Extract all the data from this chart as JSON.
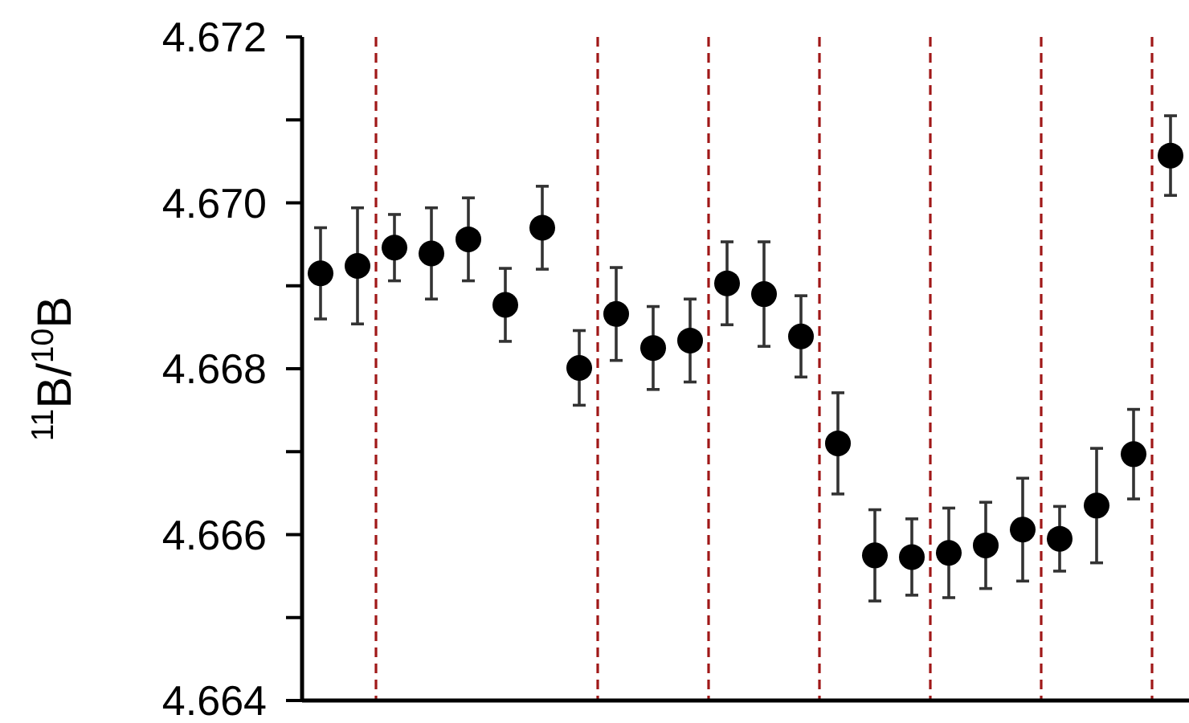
{
  "chart_data": {
    "type": "scatter",
    "ylabel": "$^{11}$B/$^{10}$B",
    "marker": "circle",
    "grid": false,
    "tick_labels": "y",
    "categories": [
      null,
      null,
      null,
      null,
      null,
      null,
      null,
      null,
      null,
      null,
      null,
      null,
      null,
      null,
      null,
      null,
      null,
      null,
      null,
      null,
      null,
      null,
      null,
      null
    ],
    "ylim": [
      4.664,
      4.672
    ],
    "yticks": [
      {
        "value": 4.664,
        "label": "4.664"
      },
      {
        "value": 4.665,
        "label": null
      },
      {
        "value": 4.666,
        "label": "4.666"
      },
      {
        "value": 4.667,
        "label": null
      },
      {
        "value": 4.668,
        "label": "4.668"
      },
      {
        "value": 4.669,
        "label": null
      },
      {
        "value": 4.67,
        "label": "4.670"
      },
      {
        "value": 4.671,
        "label": null
      },
      {
        "value": 4.672,
        "label": "4.672"
      }
    ],
    "series": [
      {
        "color": "#000000",
        "values": [
          4.66915,
          4.66924,
          null,
          null,
          null,
          null,
          null,
          null,
          null,
          null,
          null,
          null,
          null,
          null,
          null,
          null,
          null,
          null,
          null,
          null,
          null,
          null,
          null,
          null
        ],
        "errors": [
          0.00055,
          0.0007,
          null,
          null,
          null,
          null,
          null,
          null,
          null,
          null,
          null,
          null,
          null,
          null,
          null,
          null,
          null,
          null,
          null,
          null,
          null,
          null,
          null,
          null
        ]
      },
      {
        "color": "#000000",
        "values": [
          null,
          null,
          4.66946,
          4.66939,
          4.66956,
          4.66877,
          4.6697,
          4.66801,
          null,
          null,
          null,
          null,
          null,
          null,
          null,
          null,
          null,
          null,
          null,
          null,
          null,
          null,
          null,
          null
        ],
        "errors": [
          null,
          null,
          0.0004,
          0.00055,
          0.0005,
          0.00044,
          0.0005,
          0.00045,
          null,
          null,
          null,
          null,
          null,
          null,
          null,
          null,
          null,
          null,
          null,
          null,
          null,
          null,
          null,
          null
        ]
      },
      {
        "color": "#000000",
        "values": [
          null,
          null,
          null,
          null,
          null,
          null,
          null,
          null,
          4.66866,
          4.66825,
          4.66834,
          null,
          null,
          null,
          null,
          null,
          null,
          null,
          null,
          null,
          null,
          null,
          null,
          null
        ],
        "errors": [
          null,
          null,
          null,
          null,
          null,
          null,
          null,
          null,
          0.00056,
          0.0005,
          0.0005,
          null,
          null,
          null,
          null,
          null,
          null,
          null,
          null,
          null,
          null,
          null,
          null,
          null
        ]
      },
      {
        "color": "#000000",
        "values": [
          null,
          null,
          null,
          null,
          null,
          null,
          null,
          null,
          null,
          null,
          null,
          4.66903,
          4.6689,
          4.66839,
          null,
          null,
          null,
          null,
          null,
          null,
          null,
          null,
          null,
          null
        ],
        "errors": [
          null,
          null,
          null,
          null,
          null,
          null,
          null,
          null,
          null,
          null,
          null,
          0.0005,
          0.00063,
          0.00049,
          null,
          null,
          null,
          null,
          null,
          null,
          null,
          null,
          null,
          null
        ]
      },
      {
        "color": "#000000",
        "values": [
          null,
          null,
          null,
          null,
          null,
          null,
          null,
          null,
          null,
          null,
          null,
          null,
          null,
          null,
          4.6671,
          4.66575,
          4.66573,
          null,
          null,
          null,
          null,
          null,
          null,
          null
        ],
        "errors": [
          null,
          null,
          null,
          null,
          null,
          null,
          null,
          null,
          null,
          null,
          null,
          null,
          null,
          null,
          0.00061,
          0.00055,
          0.00046,
          null,
          null,
          null,
          null,
          null,
          null,
          null
        ]
      },
      {
        "color": "#000000",
        "values": [
          null,
          null,
          null,
          null,
          null,
          null,
          null,
          null,
          null,
          null,
          null,
          null,
          null,
          null,
          null,
          null,
          null,
          4.66578,
          4.66587,
          4.66606,
          null,
          null,
          null,
          null
        ],
        "errors": [
          null,
          null,
          null,
          null,
          null,
          null,
          null,
          null,
          null,
          null,
          null,
          null,
          null,
          null,
          null,
          null,
          null,
          0.00054,
          0.00052,
          0.00062,
          null,
          null,
          null,
          null
        ]
      },
      {
        "color": "#000000",
        "values": [
          null,
          null,
          null,
          null,
          null,
          null,
          null,
          null,
          null,
          null,
          null,
          null,
          null,
          null,
          null,
          null,
          null,
          null,
          null,
          null,
          4.66595,
          4.66635,
          4.66697,
          null
        ],
        "errors": [
          null,
          null,
          null,
          null,
          null,
          null,
          null,
          null,
          null,
          null,
          null,
          null,
          null,
          null,
          null,
          null,
          null,
          null,
          null,
          null,
          0.00039,
          0.00069,
          0.00054,
          null
        ]
      },
      {
        "color": "#000000",
        "values": [
          null,
          null,
          null,
          null,
          null,
          null,
          null,
          null,
          null,
          null,
          null,
          null,
          null,
          null,
          null,
          null,
          null,
          null,
          null,
          null,
          null,
          null,
          null,
          4.67057
        ],
        "errors": [
          null,
          null,
          null,
          null,
          null,
          null,
          null,
          null,
          null,
          null,
          null,
          null,
          null,
          null,
          null,
          null,
          null,
          null,
          null,
          null,
          null,
          null,
          null,
          0.00048
        ]
      }
    ]
  }
}
